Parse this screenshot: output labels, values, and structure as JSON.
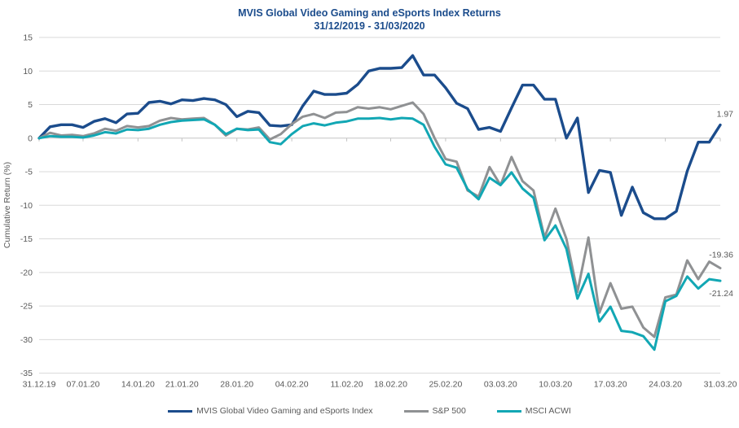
{
  "chart_data": {
    "type": "line",
    "title": "MVIS Global Video Gaming and eSports Index Returns",
    "subtitle": "31/12/2019 - 31/03/2020",
    "ylabel": "Cumulative Return (%)",
    "ylim": [
      -35,
      15
    ],
    "y_ticks": [
      15,
      10,
      5,
      0,
      -5,
      -10,
      -15,
      -20,
      -25,
      -30,
      -35
    ],
    "grid": "horizontal",
    "legend_position": "bottom",
    "x_tick_labels": [
      "31.12.19",
      "07.01.20",
      "14.01.20",
      "21.01.20",
      "28.01.20",
      "04.02.20",
      "11.02.20",
      "18.02.20",
      "25.02.20",
      "03.03.20",
      "10.03.20",
      "17.03.20",
      "24.03.20",
      "31.03.20"
    ],
    "x_tick_indices": [
      0,
      4,
      9,
      13,
      18,
      23,
      28,
      32,
      37,
      42,
      47,
      52,
      57,
      62
    ],
    "series": [
      {
        "name": "MVIS Global Video Gaming and eSports Index",
        "color": "#1b4c8c",
        "end_label": "1.97",
        "values": [
          0.0,
          1.7,
          2.0,
          2.0,
          1.6,
          2.5,
          2.9,
          2.3,
          3.6,
          3.7,
          5.3,
          5.5,
          5.1,
          5.7,
          5.6,
          5.9,
          5.7,
          5.0,
          3.2,
          4.0,
          3.8,
          1.9,
          1.8,
          2.0,
          4.8,
          7.0,
          6.5,
          6.5,
          6.7,
          8.0,
          10.0,
          10.4,
          10.4,
          10.5,
          12.3,
          9.4,
          9.4,
          7.5,
          5.2,
          4.4,
          1.3,
          1.6,
          1.0,
          4.5,
          7.9,
          7.9,
          5.8,
          5.8,
          0.0,
          3.0,
          -8.1,
          -4.8,
          -5.1,
          -11.5,
          -7.3,
          -11.1,
          -12.0,
          -12.0,
          -10.9,
          -4.9,
          -0.6,
          -0.6,
          1.97
        ]
      },
      {
        "name": "S&P 500",
        "color": "#8f9193",
        "end_label": "-19.36",
        "values": [
          0.0,
          0.8,
          0.4,
          0.5,
          0.3,
          0.7,
          1.4,
          1.1,
          1.8,
          1.6,
          1.8,
          2.6,
          3.0,
          2.8,
          2.9,
          3.0,
          2.0,
          0.4,
          1.4,
          1.3,
          1.6,
          -0.2,
          0.6,
          2.1,
          3.2,
          3.6,
          3.0,
          3.8,
          3.9,
          4.6,
          4.4,
          4.6,
          4.3,
          4.8,
          5.3,
          3.6,
          0.0,
          -3.1,
          -3.5,
          -7.8,
          -8.7,
          -4.3,
          -7.0,
          -2.8,
          -6.4,
          -7.8,
          -14.8,
          -10.5,
          -15.0,
          -22.9,
          -14.8,
          -26.0,
          -21.6,
          -25.4,
          -25.1,
          -28.2,
          -29.6,
          -23.7,
          -23.3,
          -18.2,
          -21.0,
          -18.4,
          -19.36
        ]
      },
      {
        "name": "MSCI ACWI",
        "color": "#12a7b4",
        "end_label": "-21.24",
        "values": [
          0.0,
          0.3,
          0.2,
          0.2,
          0.1,
          0.4,
          0.9,
          0.7,
          1.3,
          1.2,
          1.4,
          2.0,
          2.4,
          2.6,
          2.7,
          2.8,
          2.0,
          0.6,
          1.4,
          1.2,
          1.3,
          -0.6,
          -0.9,
          0.6,
          1.8,
          2.2,
          1.9,
          2.3,
          2.5,
          2.9,
          2.9,
          3.0,
          2.8,
          3.0,
          2.9,
          2.0,
          -1.3,
          -3.9,
          -4.4,
          -7.6,
          -9.1,
          -5.9,
          -7.0,
          -5.1,
          -7.5,
          -8.9,
          -15.2,
          -13.0,
          -16.5,
          -23.9,
          -20.2,
          -27.3,
          -25.1,
          -28.7,
          -28.9,
          -29.5,
          -31.5,
          -24.3,
          -23.5,
          -20.6,
          -22.4,
          -21.0,
          -21.24
        ]
      }
    ],
    "colors": {
      "grid": "#d9d9d9",
      "zero_axis": "#c3c3c3",
      "tick_text": "#595959",
      "title_text": "#1b4c8c"
    }
  }
}
